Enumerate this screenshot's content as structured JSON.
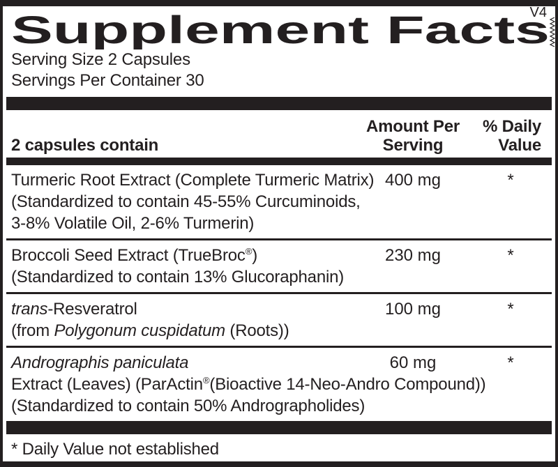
{
  "label": {
    "version": "V4",
    "title": "Supplement Facts",
    "serving_size": "Serving Size 2 Capsules",
    "servings_per_container": "Servings Per Container 30",
    "columns": {
      "ingredient": "2 capsules contain",
      "amount_line1": "Amount Per",
      "amount_line2": "Serving",
      "dv_line1": "% Daily",
      "dv_line2": "Value"
    },
    "rows": [
      {
        "lines": [
          [
            {
              "text": "Turmeric Root Extract (Complete Turmeric Matrix)"
            }
          ],
          [
            {
              "text": "(Standardized to contain 45-55% Curcuminoids,"
            }
          ],
          [
            {
              "text": "3-8% Volatile Oil, 2-6% Turmerin)"
            }
          ]
        ],
        "amount": "400 mg",
        "daily_value": "*"
      },
      {
        "lines": [
          [
            {
              "text": "Broccoli Seed Extract (TrueBroc"
            },
            {
              "text": "®",
              "sup": true
            },
            {
              "text": ")"
            }
          ],
          [
            {
              "text": "(Standardized to contain 13% Glucoraphanin)"
            }
          ]
        ],
        "amount": "230 mg",
        "daily_value": "*"
      },
      {
        "lines": [
          [
            {
              "text": "trans",
              "italic": true
            },
            {
              "text": "-Resveratrol"
            }
          ],
          [
            {
              "text": "(from "
            },
            {
              "text": "Polygonum cuspidatum",
              "italic": true
            },
            {
              "text": " (Roots))"
            }
          ]
        ],
        "amount": "100 mg",
        "daily_value": "*"
      },
      {
        "lines": [
          [
            {
              "text": "Andrographis paniculata",
              "italic": true
            }
          ],
          [
            {
              "text": "Extract (Leaves) (ParActin"
            },
            {
              "text": "®",
              "sup": true
            },
            {
              "text": "(Bioactive 14-Neo-Andro Compound))"
            }
          ],
          [
            {
              "text": "(Standardized to contain 50% Andrographolides)"
            }
          ]
        ],
        "amount": "60 mg",
        "daily_value": "*"
      }
    ],
    "footnote": "* Daily Value not established"
  },
  "colors": {
    "ink": "#231f20",
    "background": "#ffffff"
  }
}
